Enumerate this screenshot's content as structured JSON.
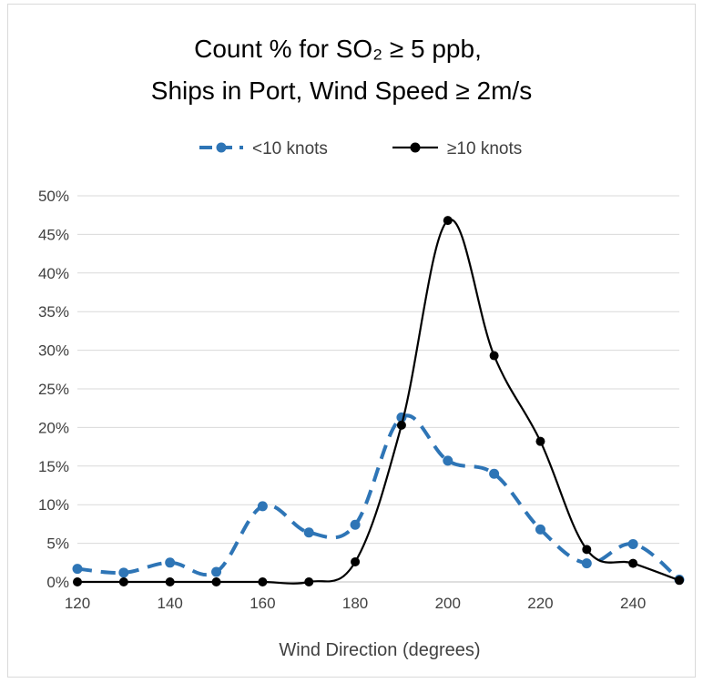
{
  "chart_data": {
    "type": "line",
    "title_line1": "Count % for SO₂ ≥ 5 ppb,",
    "title_line2": "Ships in Port, Wind Speed ≥ 2m/s",
    "xlabel": "Wind Direction (degrees)",
    "ylabel": "",
    "xlim": [
      120,
      250
    ],
    "ylim": [
      0,
      50
    ],
    "x_ticks": [
      120,
      140,
      160,
      180,
      200,
      220,
      240
    ],
    "y_ticks": [
      0,
      5,
      10,
      15,
      20,
      25,
      30,
      35,
      40,
      45,
      50
    ],
    "y_tick_labels": [
      "0%",
      "5%",
      "10%",
      "15%",
      "20%",
      "25%",
      "30%",
      "35%",
      "40%",
      "45%",
      "50%"
    ],
    "grid": "horizontal",
    "legend_position": "top",
    "x": [
      120,
      130,
      140,
      150,
      160,
      170,
      180,
      190,
      200,
      210,
      220,
      230,
      240,
      250
    ],
    "series": [
      {
        "name": "<10 knots",
        "color": "#2e75b6",
        "style": "dashed",
        "values": [
          1.7,
          1.2,
          2.5,
          1.3,
          9.8,
          6.4,
          7.4,
          21.3,
          15.7,
          14.0,
          6.8,
          2.4,
          4.9,
          0.3
        ]
      },
      {
        "name": "≥10 knots",
        "color": "#000000",
        "style": "solid",
        "values": [
          0.0,
          0.0,
          0.0,
          0.0,
          0.0,
          0.0,
          2.6,
          20.3,
          46.8,
          29.3,
          18.2,
          4.2,
          2.4,
          0.2
        ]
      }
    ]
  }
}
